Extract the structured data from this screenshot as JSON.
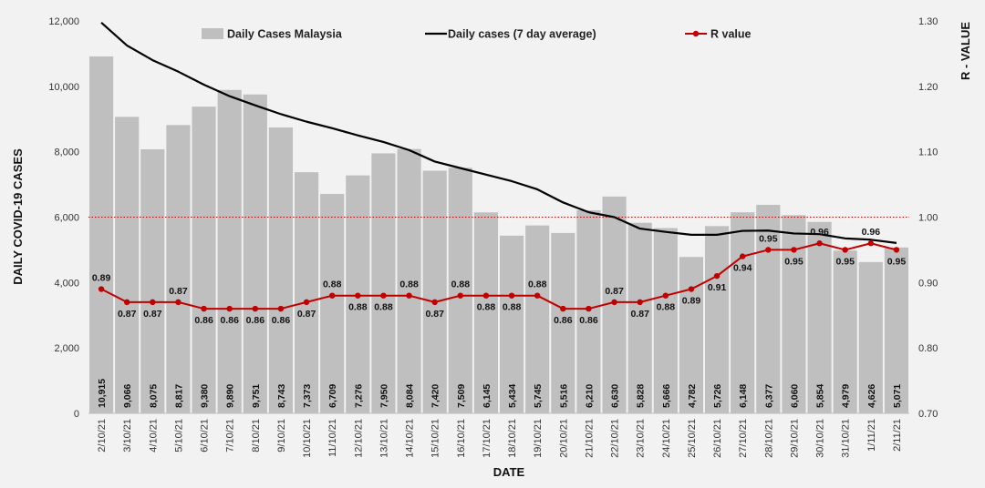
{
  "chart_data": {
    "type": "bar",
    "categories": [
      "2/10/21",
      "3/10/21",
      "4/10/21",
      "5/10/21",
      "6/10/21",
      "7/10/21",
      "8/10/21",
      "9/10/21",
      "10/10/21",
      "11/10/21",
      "12/10/21",
      "13/10/21",
      "14/10/21",
      "15/10/21",
      "16/10/21",
      "17/10/21",
      "18/10/21",
      "19/10/21",
      "20/10/21",
      "21/10/21",
      "22/10/21",
      "23/10/21",
      "24/10/21",
      "25/10/21",
      "26/10/21",
      "27/10/21",
      "28/10/21",
      "29/10/21",
      "30/10/21",
      "31/10/21",
      "1/11/21",
      "2/11/21"
    ],
    "series": [
      {
        "name": "Daily Cases Malaysia",
        "type": "bar",
        "axis": "left",
        "color": "#bfbfbf",
        "values": [
          10915,
          9066,
          8075,
          8817,
          9380,
          9890,
          9751,
          8743,
          7373,
          6709,
          7276,
          7950,
          8084,
          7420,
          7509,
          6145,
          5434,
          5745,
          5516,
          6210,
          6630,
          5828,
          5666,
          4782,
          5726,
          6148,
          6377,
          6060,
          5854,
          4979,
          4626,
          5071
        ],
        "labels": [
          "10,915",
          "9,066",
          "8,075",
          "8,817",
          "9,380",
          "9,890",
          "9,751",
          "8,743",
          "7,373",
          "6,709",
          "7,276",
          "7,950",
          "8,084",
          "7,420",
          "7,509",
          "6,145",
          "5,434",
          "5,745",
          "5,516",
          "6,210",
          "6,630",
          "5,828",
          "5,666",
          "4,782",
          "5,726",
          "6,148",
          "6,377",
          "6,060",
          "5,854",
          "4,979",
          "4,626",
          "5,071"
        ]
      },
      {
        "name": "Daily cases (7 day average)",
        "type": "line",
        "axis": "left",
        "color": "#000000",
        "values": [
          11950,
          11250,
          10800,
          10450,
          10050,
          9700,
          9420,
          9150,
          8920,
          8720,
          8500,
          8300,
          8050,
          7700,
          7500,
          7300,
          7100,
          6850,
          6450,
          6150,
          6000,
          5650,
          5550,
          5460,
          5460,
          5580,
          5590,
          5500,
          5480,
          5350,
          5310,
          5210
        ]
      },
      {
        "name": "R value",
        "type": "line",
        "axis": "right",
        "color": "#c00000",
        "values": [
          0.89,
          0.87,
          0.87,
          0.87,
          0.86,
          0.86,
          0.86,
          0.86,
          0.87,
          0.88,
          0.88,
          0.88,
          0.88,
          0.87,
          0.88,
          0.88,
          0.88,
          0.88,
          0.86,
          0.86,
          0.87,
          0.87,
          0.88,
          0.89,
          0.91,
          0.94,
          0.95,
          0.95,
          0.96,
          0.95,
          0.96,
          0.95
        ],
        "labels": [
          "0.89",
          "0.87",
          "0.87",
          "0.87",
          "0.86",
          "0.86",
          "0.86",
          "0.86",
          "0.87",
          "0.88",
          "0.88",
          "0.88",
          "0.88",
          "0.87",
          "0.88",
          "0.88",
          "0.88",
          "0.88",
          "0.86",
          "0.86",
          "0.87",
          "0.87",
          "0.88",
          "0.89",
          "0.91",
          "0.94",
          "0.95",
          "0.95",
          "0.96",
          "0.95",
          "0.96",
          "0.95"
        ]
      }
    ],
    "reference_line": {
      "axis": "right",
      "value": 1.0,
      "color": "#c00000",
      "style": "dotted"
    },
    "xlabel": "DATE",
    "ylabel": "DAILY COVID-19 CASES",
    "y2label": "R - VALUE",
    "ylim": [
      0,
      12000
    ],
    "yticks": [
      0,
      2000,
      4000,
      6000,
      8000,
      10000,
      12000
    ],
    "ytick_labels": [
      "0",
      "2,000",
      "4,000",
      "6,000",
      "8,000",
      "10,000",
      "12,000"
    ],
    "y2lim": [
      0.7,
      1.3
    ],
    "y2ticks": [
      0.7,
      0.8,
      0.9,
      1.0,
      1.1,
      1.2,
      1.3
    ],
    "y2tick_labels": [
      "0.70",
      "0.80",
      "0.90",
      "1.00",
      "1.10",
      "1.20",
      "1.30"
    ],
    "legend": {
      "placement": "top"
    }
  }
}
